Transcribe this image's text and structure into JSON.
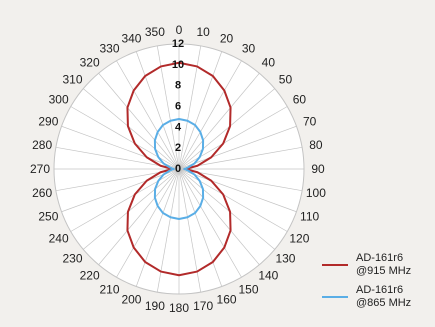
{
  "chart_data": {
    "type": "polar-line",
    "angle_unit": "degrees",
    "angle_ticks": [
      0,
      10,
      20,
      30,
      40,
      50,
      60,
      70,
      80,
      90,
      100,
      110,
      120,
      130,
      140,
      150,
      160,
      170,
      180,
      190,
      200,
      210,
      220,
      230,
      240,
      250,
      260,
      270,
      280,
      290,
      300,
      310,
      320,
      330,
      340,
      350
    ],
    "angle_tick_labels": [
      "0",
      "10",
      "20",
      "30",
      "40",
      "50",
      "60",
      "70",
      "80",
      "90",
      "100",
      "110",
      "120",
      "130",
      "140",
      "150",
      "160",
      "170",
      "180",
      "190",
      "200",
      "210",
      "220",
      "230",
      "240",
      "250",
      "260",
      "270",
      "280",
      "290",
      "300",
      "310",
      "320",
      "330",
      "340",
      "350"
    ],
    "radial_ticks": [
      0,
      2,
      4,
      6,
      8,
      10,
      12
    ],
    "radial_tick_labels": [
      "0",
      "2",
      "4",
      "6",
      "8",
      "10",
      "12"
    ],
    "rlim": [
      0,
      12
    ],
    "grid": true,
    "legend_position": "bottom-right",
    "series": [
      {
        "name": "AD-161r6\n@915 MHz",
        "color": "#b22a2a",
        "angles": [
          0,
          10,
          20,
          30,
          40,
          50,
          60,
          70,
          80,
          90,
          100,
          110,
          120,
          130,
          140,
          150,
          160,
          170,
          180,
          190,
          200,
          210,
          220,
          230,
          240,
          250,
          260,
          270,
          280,
          290,
          300,
          310,
          320,
          330,
          340,
          350
        ],
        "values": [
          10.2,
          10.0,
          9.5,
          8.7,
          7.7,
          6.4,
          4.9,
          3.3,
          1.8,
          0.6,
          1.8,
          3.3,
          4.9,
          6.4,
          7.7,
          8.7,
          9.5,
          10.0,
          10.2,
          10.0,
          9.5,
          8.7,
          7.7,
          6.4,
          4.9,
          3.3,
          1.8,
          0.6,
          1.8,
          3.3,
          4.9,
          6.4,
          7.7,
          8.7,
          9.5,
          10.0
        ]
      },
      {
        "name": "AD-161r6\n@865 MHz",
        "color": "#5aaee6",
        "angles": [
          0,
          10,
          20,
          30,
          40,
          50,
          60,
          70,
          80,
          90,
          100,
          110,
          120,
          130,
          140,
          150,
          160,
          170,
          180,
          190,
          200,
          210,
          220,
          230,
          240,
          250,
          260,
          270,
          280,
          290,
          300,
          310,
          320,
          330,
          340,
          350
        ],
        "values": [
          4.8,
          4.7,
          4.5,
          4.1,
          3.6,
          3.0,
          2.3,
          1.6,
          0.9,
          0.5,
          0.9,
          1.6,
          2.3,
          3.0,
          3.6,
          4.1,
          4.5,
          4.7,
          4.8,
          4.7,
          4.5,
          4.1,
          3.6,
          3.0,
          2.3,
          1.6,
          0.9,
          0.5,
          0.9,
          1.6,
          2.3,
          3.0,
          3.6,
          4.1,
          4.5,
          4.7
        ]
      }
    ]
  }
}
